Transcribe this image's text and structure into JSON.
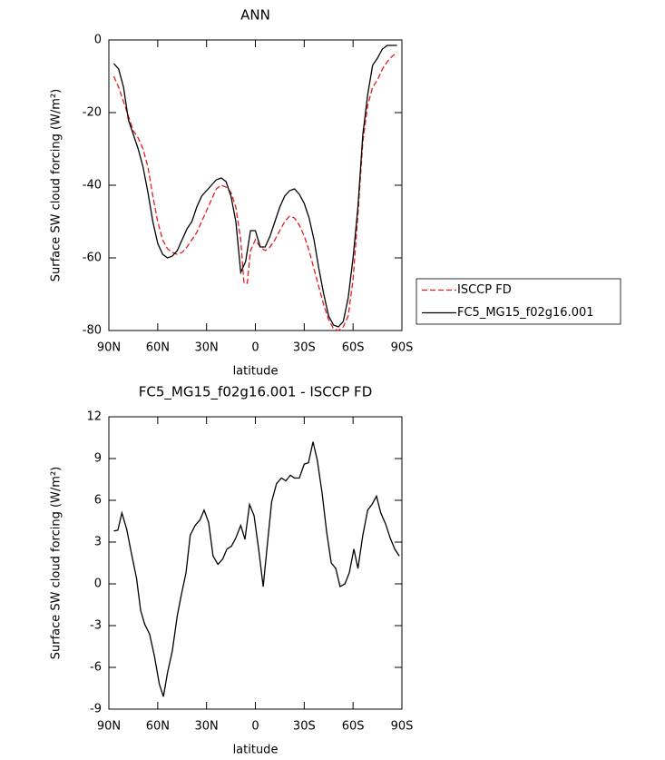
{
  "chart_data": [
    {
      "type": "line",
      "title": "ANN",
      "xlabel": "latitude",
      "ylabel": "Surface SW cloud forcing (W/m²)",
      "xlim": [
        90,
        -90
      ],
      "xticks": [
        {
          "value": 90,
          "label": "90N"
        },
        {
          "value": 60,
          "label": "60N"
        },
        {
          "value": 30,
          "label": "30N"
        },
        0,
        {
          "value": -30,
          "label": "30S"
        },
        {
          "value": -60,
          "label": "60S"
        },
        {
          "value": -90,
          "label": "90S"
        }
      ],
      "ylim": [
        -80,
        0
      ],
      "yticks": [
        0,
        -20,
        -40,
        -60,
        -80
      ],
      "legend": "outside right",
      "series": [
        {
          "name": "ISCCP FD",
          "color": "#e8191c",
          "linestyle": "dashed",
          "x": [
            87,
            84,
            81,
            78,
            75,
            72,
            69,
            66,
            63,
            60,
            57,
            54,
            51,
            48,
            45,
            42,
            39,
            36,
            33,
            30,
            27,
            24,
            21,
            18,
            15,
            12,
            9,
            7,
            5,
            3,
            0,
            -3,
            -6,
            -9,
            -12,
            -15,
            -18,
            -21,
            -24,
            -27,
            -30,
            -33,
            -36,
            -39,
            -42,
            -45,
            -48,
            -51,
            -54,
            -57,
            -60,
            -63,
            -66,
            -69,
            -72,
            -75,
            -78,
            -81,
            -84,
            -87
          ],
          "values": [
            -10,
            -13,
            -17,
            -21,
            -25,
            -27,
            -30,
            -35,
            -43,
            -50,
            -55,
            -57.5,
            -58.5,
            -59,
            -58.5,
            -57,
            -55,
            -53,
            -50,
            -47,
            -44,
            -41,
            -40,
            -40.5,
            -42,
            -46,
            -55,
            -67,
            -67,
            -58,
            -55,
            -57,
            -58,
            -57,
            -55,
            -52.5,
            -50,
            -48.5,
            -49,
            -51,
            -54,
            -58,
            -63,
            -68,
            -73,
            -77,
            -79.5,
            -80,
            -79,
            -76,
            -66,
            -48,
            -28,
            -18,
            -13,
            -11,
            -8,
            -6,
            -4.5,
            -3.5
          ]
        },
        {
          "name": "FC5_MG15_f02g16.001",
          "color": "#000000",
          "linestyle": "solid",
          "x": [
            87,
            84,
            81,
            78,
            75,
            72,
            69,
            66,
            63,
            60,
            57,
            54,
            51,
            48,
            45,
            42,
            39,
            36,
            33,
            30,
            27,
            24,
            21,
            18,
            15,
            12,
            9,
            6,
            3,
            0,
            -3,
            -6,
            -9,
            -12,
            -15,
            -18,
            -21,
            -24,
            -27,
            -30,
            -33,
            -36,
            -39,
            -42,
            -45,
            -48,
            -51,
            -54,
            -57,
            -60,
            -63,
            -66,
            -69,
            -72,
            -75,
            -78,
            -81,
            -84,
            -87
          ],
          "values": [
            -6.5,
            -8,
            -13,
            -22,
            -26,
            -30,
            -35,
            -42,
            -50,
            -56,
            -59,
            -60,
            -59.5,
            -58,
            -55,
            -52,
            -50,
            -46,
            -43,
            -41.5,
            -40,
            -38.5,
            -38,
            -39,
            -43,
            -50,
            -64,
            -61,
            -52.5,
            -52.5,
            -57,
            -57,
            -54,
            -50,
            -46,
            -43,
            -41.5,
            -41,
            -42.5,
            -45,
            -49,
            -55,
            -63,
            -70,
            -76,
            -78.5,
            -79,
            -77.5,
            -71,
            -60,
            -46,
            -26,
            -15,
            -7,
            -5,
            -2.5,
            -1.5,
            -1.5,
            -1.5
          ]
        }
      ]
    },
    {
      "type": "line",
      "title": "FC5_MG15_f02g16.001 - ISCCP FD",
      "xlabel": "latitude",
      "ylabel": "Surface SW cloud forcing (W/m²)",
      "xlim": [
        90,
        -90
      ],
      "xticks": [
        {
          "value": 90,
          "label": "90N"
        },
        {
          "value": 60,
          "label": "60N"
        },
        {
          "value": 30,
          "label": "30N"
        },
        0,
        {
          "value": -30,
          "label": "30S"
        },
        {
          "value": -60,
          "label": "60S"
        },
        {
          "value": -90,
          "label": "90S"
        }
      ],
      "ylim": [
        -9,
        12
      ],
      "yticks": [
        12,
        9,
        6,
        3,
        0,
        -3,
        -6,
        -9
      ],
      "series": [
        {
          "color": "#000000",
          "linestyle": "solid",
          "x": [
            87,
            84.5,
            82,
            79,
            76,
            73,
            70.5,
            68,
            65,
            62,
            59,
            56.5,
            54,
            51,
            48,
            45.5,
            42.6,
            40,
            37,
            34,
            31.5,
            28.7,
            26,
            23,
            20,
            17.5,
            14.7,
            12,
            9,
            6.4,
            3.6,
            0.8,
            -2,
            -4.8,
            -7.5,
            -10,
            -13,
            -16,
            -18.7,
            -21.5,
            -24,
            -27,
            -30,
            -32.6,
            -35.4,
            -38,
            -41,
            -43.8,
            -46.6,
            -49.4,
            -52,
            -55,
            -57.7,
            -60.5,
            -63,
            -66,
            -69,
            -71.6,
            -74.4,
            -77,
            -80,
            -82.8,
            -85.6,
            -88.4
          ],
          "values": [
            3.8,
            3.85,
            5.1,
            3.9,
            2.1,
            0.4,
            -1.9,
            -2.9,
            -3.6,
            -5.2,
            -7.2,
            -8.1,
            -6.4,
            -4.8,
            -2.3,
            -0.8,
            0.8,
            3.5,
            4.2,
            4.6,
            5.3,
            4.4,
            2,
            1.4,
            1.8,
            2.5,
            2.7,
            3.3,
            4.2,
            3.2,
            5.7,
            4.9,
            2.5,
            -0.2,
            3,
            5.9,
            7.2,
            7.6,
            7.4,
            7.8,
            7.6,
            7.6,
            8.6,
            8.7,
            10.2,
            8.9,
            6.5,
            3.7,
            1.5,
            1.1,
            -0.2,
            0,
            0.8,
            2.5,
            1.1,
            3.5,
            5.3,
            5.7,
            6.3,
            5.1,
            4.3,
            3.3,
            2.5,
            2
          ]
        }
      ]
    }
  ]
}
